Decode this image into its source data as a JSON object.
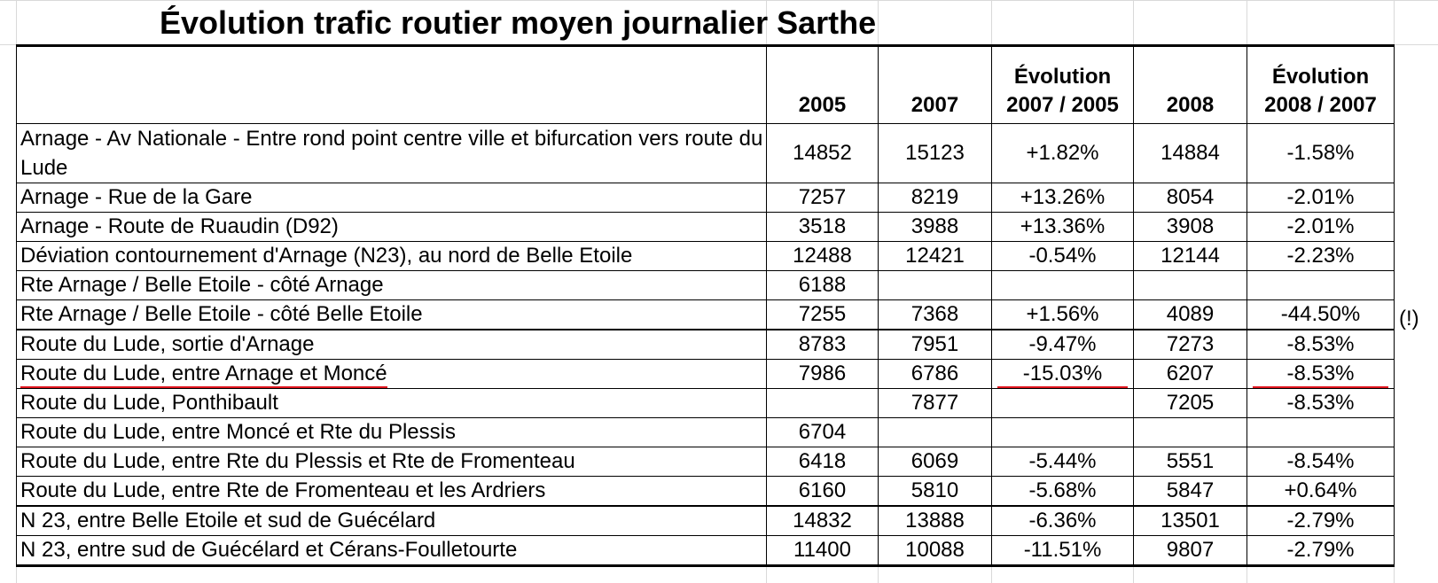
{
  "title": "Évolution trafic routier moyen journalier Sarthe",
  "headers": {
    "y2005": "2005",
    "y2007": "2007",
    "evo1_line1": "Évolution",
    "evo1_line2": "2007 / 2005",
    "y2008": "2008",
    "evo2_line1": "Évolution",
    "evo2_line2": "2008 / 2007"
  },
  "rows": [
    {
      "location": "Arnage - Av Nationale - Entre rond point centre ville et bifurcation vers route du Lude",
      "v2005": "14852",
      "v2007": "15123",
      "evo1": "+1.82%",
      "v2008": "14884",
      "evo2": "-1.58%"
    },
    {
      "location": "Arnage - Rue de la Gare",
      "v2005": "7257",
      "v2007": "8219",
      "evo1": "+13.26%",
      "v2008": "8054",
      "evo2": "-2.01%"
    },
    {
      "location": "Arnage - Route de Ruaudin (D92)",
      "v2005": "3518",
      "v2007": "3988",
      "evo1": "+13.36%",
      "v2008": "3908",
      "evo2": "-2.01%"
    },
    {
      "location": "Déviation contournement d'Arnage (N23), au nord de Belle Etoile",
      "v2005": "12488",
      "v2007": "12421",
      "evo1": "-0.54%",
      "v2008": "12144",
      "evo2": "-2.23%"
    },
    {
      "location": "Rte Arnage / Belle Etoile - côté Arnage",
      "v2005": "6188",
      "v2007": "",
      "evo1": "",
      "v2008": "",
      "evo2": ""
    },
    {
      "location": "Rte Arnage / Belle Etoile - côté Belle Etoile",
      "v2005": "7255",
      "v2007": "7368",
      "evo1": "+1.56%",
      "v2008": "4089",
      "evo2": "-44.50%"
    },
    {
      "location": "Route du Lude, sortie d'Arnage",
      "v2005": "8783",
      "v2007": "7951",
      "evo1": "-9.47%",
      "v2008": "7273",
      "evo2": "-8.53%"
    },
    {
      "location": "Route du Lude, entre Arnage et Moncé",
      "v2005": "7986",
      "v2007": "6786",
      "evo1": "-15.03%",
      "v2008": "6207",
      "evo2": "-8.53%"
    },
    {
      "location": "Route du Lude, Ponthibault",
      "v2005": "",
      "v2007": "7877",
      "evo1": "",
      "v2008": "7205",
      "evo2": "-8.53%"
    },
    {
      "location": "Route du Lude, entre Moncé et Rte du Plessis",
      "v2005": "6704",
      "v2007": "",
      "evo1": "",
      "v2008": "",
      "evo2": ""
    },
    {
      "location": "Route du Lude, entre Rte du Plessis et Rte de Fromenteau",
      "v2005": "6418",
      "v2007": "6069",
      "evo1": "-5.44%",
      "v2008": "5551",
      "evo2": "-8.54%"
    },
    {
      "location": "Route du Lude, entre Rte de Fromenteau et les Ardriers",
      "v2005": "6160",
      "v2007": "5810",
      "evo1": "-5.68%",
      "v2008": "5847",
      "evo2": "+0.64%"
    },
    {
      "location": "N 23, entre Belle Etoile et sud de Guécélard",
      "v2005": "14832",
      "v2007": "13888",
      "evo1": "-6.36%",
      "v2008": "13501",
      "evo2": "-2.79%"
    },
    {
      "location": "N 23, entre sud de Guécélard et Cérans-Foulletourte",
      "v2005": "11400",
      "v2007": "10088",
      "evo1": "-11.51%",
      "v2008": "9807",
      "evo2": "-2.79%"
    }
  ],
  "note": "(!)",
  "highlight_color": "#e0141e"
}
